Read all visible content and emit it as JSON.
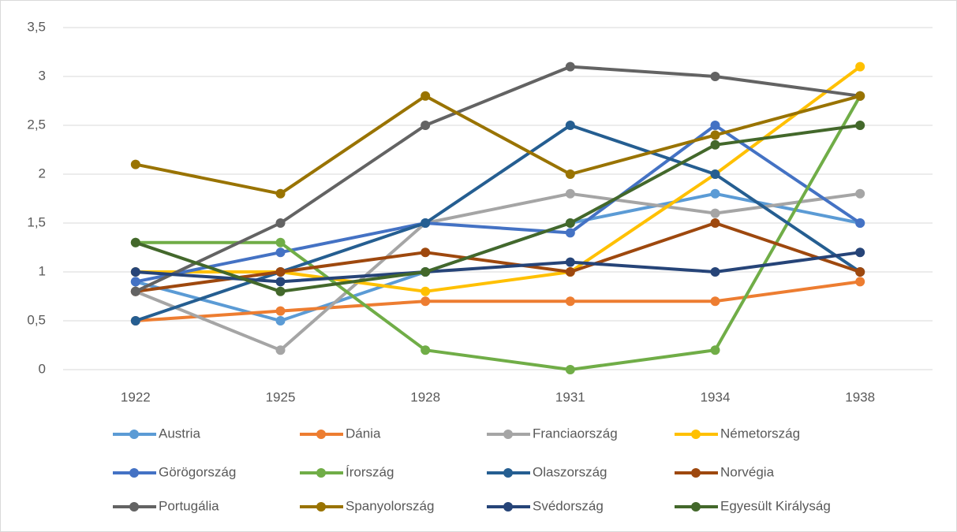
{
  "chart_data": {
    "type": "line",
    "categories": [
      "1922",
      "1925",
      "1928",
      "1931",
      "1934",
      "1938"
    ],
    "ylim": [
      0,
      3.5
    ],
    "yticks": [
      0,
      {
        "value": 0.5,
        "label": "0,5"
      },
      1,
      {
        "value": 1.5,
        "label": "1,5"
      },
      2,
      {
        "value": 2.5,
        "label": "2,5"
      },
      3,
      {
        "value": 3.5,
        "label": "3,5"
      }
    ],
    "grid": true,
    "legend": "bottom",
    "series": [
      {
        "name": "Austria",
        "color": "#5b9bd5",
        "values": [
          0.9,
          0.5,
          1.0,
          1.5,
          1.8,
          1.5
        ]
      },
      {
        "name": "Dánia",
        "color": "#ed7d31",
        "values": [
          0.5,
          0.6,
          0.7,
          0.7,
          0.7,
          0.9
        ]
      },
      {
        "name": "Franciaország",
        "color": "#a5a5a5",
        "values": [
          0.8,
          0.2,
          1.5,
          1.8,
          1.6,
          1.8
        ]
      },
      {
        "name": "Németország",
        "color": "#ffc000",
        "values": [
          1.0,
          1.0,
          0.8,
          1.0,
          2.0,
          3.1
        ]
      },
      {
        "name": "Görögország",
        "color": "#4472c4",
        "values": [
          0.9,
          1.2,
          1.5,
          1.4,
          2.5,
          1.5
        ]
      },
      {
        "name": "Írország",
        "color": "#70ad47",
        "values": [
          1.3,
          1.3,
          0.2,
          0,
          0.2,
          2.8
        ]
      },
      {
        "name": "Olaszország",
        "color": "#255e91",
        "values": [
          0.5,
          1.0,
          1.5,
          2.5,
          2.0,
          1.0
        ]
      },
      {
        "name": "Norvégia",
        "color": "#9e480e",
        "values": [
          0.8,
          1.0,
          1.2,
          1.0,
          1.5,
          1.0
        ]
      },
      {
        "name": "Portugália",
        "color": "#636363",
        "values": [
          0.8,
          1.5,
          2.5,
          3.1,
          3.0,
          2.8
        ]
      },
      {
        "name": "Spanyolország",
        "color": "#997300",
        "values": [
          2.1,
          1.8,
          2.8,
          2.0,
          2.4,
          2.8
        ]
      },
      {
        "name": "Svédország",
        "color": "#264478",
        "values": [
          1.0,
          0.9,
          1.0,
          1.1,
          1.0,
          1.2
        ]
      },
      {
        "name": "Egyesült Királyság",
        "color": "#43682b",
        "values": [
          1.3,
          0.8,
          1.0,
          1.5,
          2.3,
          2.5
        ]
      }
    ]
  }
}
